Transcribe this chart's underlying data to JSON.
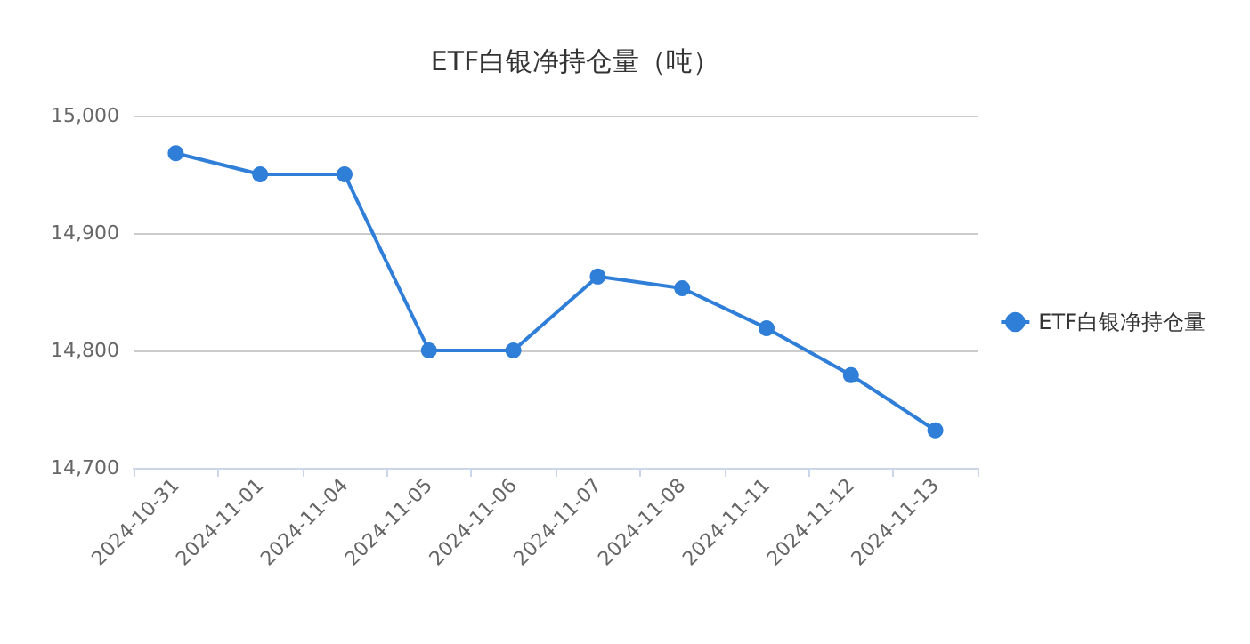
{
  "chart_data": {
    "type": "line",
    "title": "ETF白银净持仓量（吨）",
    "categories": [
      "2024-10-31",
      "2024-11-01",
      "2024-11-04",
      "2024-11-05",
      "2024-11-06",
      "2024-11-07",
      "2024-11-08",
      "2024-11-11",
      "2024-11-12",
      "2024-11-13"
    ],
    "series": [
      {
        "name": "ETF白银净持仓量",
        "color": "#2f7ed8",
        "values": [
          14968,
          14950,
          14950,
          14800,
          14800,
          14863,
          14853,
          14819,
          14779,
          14732
        ]
      }
    ],
    "ylim": [
      14700,
      15000
    ],
    "yticks": [
      {
        "value": 14700,
        "label": "14,700"
      },
      {
        "value": 14800,
        "label": "14,800"
      },
      {
        "value": 14900,
        "label": "14,900"
      },
      {
        "value": 15000,
        "label": "15,000"
      }
    ],
    "grid": "y",
    "legend": "right",
    "marker": "circle",
    "line_style": "solid"
  }
}
